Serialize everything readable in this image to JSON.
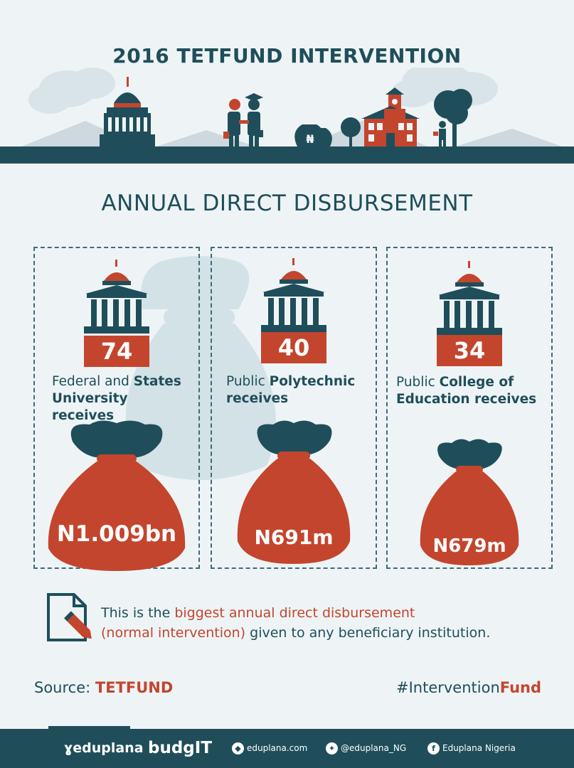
{
  "header": {
    "title": "2016 TETFUND INTERVENTION",
    "naira_symbol": "₦"
  },
  "section": {
    "title": "ANNUAL DIRECT DISBURSEMENT"
  },
  "cards": [
    {
      "count": "74",
      "label_normal_1": "Federal and ",
      "label_bold_1": "States",
      "label_bold_2": "University receives",
      "amount": "N1.009bn"
    },
    {
      "count": "40",
      "label_normal_1": "Public ",
      "label_bold_1": "Polytechnic",
      "label_bold_2": "receives",
      "amount": "N691m"
    },
    {
      "count": "34",
      "label_normal_1": "Public ",
      "label_bold_1": "College of",
      "label_bold_2": "Education receives",
      "amount": "N679m"
    }
  ],
  "note": {
    "part1": "This is the ",
    "part2": "biggest annual direct disbursement",
    "part3": "(normal intervention)",
    "part4": " given to any beneficiary institution."
  },
  "source": {
    "prefix": "Source: ",
    "name": "TETFUND"
  },
  "hashtag": {
    "prefix": "#Intervention",
    "suffix": "Fund"
  },
  "footer": {
    "logo_eduplana": "eduplana",
    "logo_budgit": "budgIT",
    "website": "eduplana.com",
    "twitter": "@eduplana_NG",
    "facebook": "Eduplana Nigeria"
  },
  "colors": {
    "dark_teal": "#1f4e5a",
    "accent_red": "#c4452d",
    "background": "#eef4f6"
  }
}
